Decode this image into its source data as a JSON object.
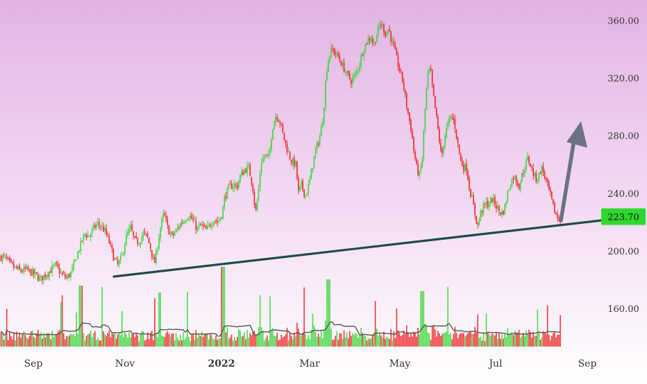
{
  "chart_data": {
    "type": "candlestick",
    "y_axis": {
      "position": "right",
      "ticks": [
        "360.00",
        "320.00",
        "280.00",
        "240.00",
        "200.00",
        "160.00"
      ],
      "tick_values": [
        360,
        320,
        280,
        240,
        200,
        160
      ],
      "range": [
        118,
        378
      ]
    },
    "x_axis": {
      "labels": [
        "Sep",
        "Nov",
        "2022",
        "Mar",
        "May",
        "Jul",
        "Sep"
      ],
      "bold_label": "2022"
    },
    "last_price": {
      "label": "223.70",
      "value": 223.7
    },
    "colors": {
      "up": "#36d636",
      "down": "#ee2222",
      "background_top": "#e2b4e2",
      "background_bottom": "#ffffff",
      "trendline": "#1e4a48",
      "arrow": "#6b7280",
      "price_badge": "#2fd82f",
      "volume_ma": "#555555"
    },
    "trendline": {
      "start": [
        "Oct-2021",
        183
      ],
      "end": [
        "Aug-2022",
        222
      ]
    },
    "arrow": {
      "direction": "up"
    },
    "price_path": [
      [
        0,
        196
      ],
      [
        8,
        195
      ],
      [
        14,
        191
      ],
      [
        22,
        188
      ],
      [
        30,
        186
      ],
      [
        38,
        187
      ],
      [
        45,
        185
      ],
      [
        52,
        183
      ],
      [
        58,
        180
      ],
      [
        64,
        183
      ],
      [
        72,
        186
      ],
      [
        80,
        190
      ],
      [
        88,
        184
      ],
      [
        96,
        181
      ],
      [
        104,
        186
      ],
      [
        110,
        196
      ],
      [
        116,
        204
      ],
      [
        122,
        212
      ],
      [
        128,
        210
      ],
      [
        134,
        215
      ],
      [
        140,
        219
      ],
      [
        146,
        217
      ],
      [
        152,
        213
      ],
      [
        158,
        205
      ],
      [
        164,
        195
      ],
      [
        170,
        190
      ],
      [
        176,
        197
      ],
      [
        182,
        210
      ],
      [
        188,
        216
      ],
      [
        194,
        207
      ],
      [
        200,
        206
      ],
      [
        206,
        212
      ],
      [
        212,
        210
      ],
      [
        218,
        200
      ],
      [
        222,
        190
      ],
      [
        226,
        200
      ],
      [
        230,
        214
      ],
      [
        236,
        226
      ],
      [
        242,
        215
      ],
      [
        248,
        210
      ],
      [
        254,
        214
      ],
      [
        260,
        219
      ],
      [
        266,
        222
      ],
      [
        272,
        225
      ],
      [
        278,
        221
      ],
      [
        284,
        215
      ],
      [
        290,
        218
      ],
      [
        296,
        214
      ],
      [
        302,
        218
      ],
      [
        308,
        222
      ],
      [
        314,
        220
      ],
      [
        320,
        226
      ],
      [
        324,
        238
      ],
      [
        330,
        244
      ],
      [
        336,
        246
      ],
      [
        342,
        245
      ],
      [
        346,
        252
      ],
      [
        352,
        256
      ],
      [
        358,
        258
      ],
      [
        364,
        245
      ],
      [
        368,
        226
      ],
      [
        372,
        240
      ],
      [
        376,
        262
      ],
      [
        382,
        266
      ],
      [
        388,
        265
      ],
      [
        392,
        285
      ],
      [
        398,
        295
      ],
      [
        404,
        289
      ],
      [
        408,
        280
      ],
      [
        414,
        270
      ],
      [
        420,
        262
      ],
      [
        426,
        260
      ],
      [
        430,
        240
      ],
      [
        434,
        246
      ],
      [
        440,
        238
      ],
      [
        446,
        248
      ],
      [
        452,
        264
      ],
      [
        458,
        275
      ],
      [
        462,
        282
      ],
      [
        466,
        296
      ],
      [
        470,
        325
      ],
      [
        474,
        335
      ],
      [
        478,
        340
      ],
      [
        482,
        338
      ],
      [
        488,
        334
      ],
      [
        494,
        328
      ],
      [
        500,
        322
      ],
      [
        506,
        318
      ],
      [
        512,
        322
      ],
      [
        518,
        330
      ],
      [
        522,
        338
      ],
      [
        528,
        345
      ],
      [
        534,
        349
      ],
      [
        538,
        343
      ],
      [
        544,
        352
      ],
      [
        548,
        358
      ],
      [
        552,
        355
      ],
      [
        556,
        350
      ],
      [
        560,
        355
      ],
      [
        564,
        346
      ],
      [
        568,
        340
      ],
      [
        574,
        328
      ],
      [
        580,
        318
      ],
      [
        586,
        300
      ],
      [
        592,
        285
      ],
      [
        596,
        270
      ],
      [
        600,
        258
      ],
      [
        604,
        252
      ],
      [
        608,
        262
      ],
      [
        612,
        296
      ],
      [
        616,
        322
      ],
      [
        620,
        326
      ],
      [
        624,
        308
      ],
      [
        628,
        295
      ],
      [
        632,
        280
      ],
      [
        636,
        264
      ],
      [
        640,
        278
      ],
      [
        644,
        286
      ],
      [
        648,
        292
      ],
      [
        652,
        293
      ],
      [
        656,
        285
      ],
      [
        660,
        272
      ],
      [
        664,
        262
      ],
      [
        668,
        258
      ],
      [
        672,
        258
      ],
      [
        676,
        244
      ],
      [
        680,
        236
      ],
      [
        684,
        226
      ],
      [
        688,
        217
      ],
      [
        692,
        226
      ],
      [
        696,
        230
      ],
      [
        700,
        233
      ],
      [
        704,
        232
      ],
      [
        708,
        236
      ],
      [
        712,
        234
      ],
      [
        716,
        230
      ],
      [
        720,
        227
      ],
      [
        724,
        226
      ],
      [
        728,
        232
      ],
      [
        732,
        242
      ],
      [
        736,
        248
      ],
      [
        740,
        252
      ],
      [
        744,
        249
      ],
      [
        748,
        245
      ],
      [
        752,
        253
      ],
      [
        756,
        258
      ],
      [
        760,
        264
      ],
      [
        764,
        260
      ],
      [
        768,
        254
      ],
      [
        772,
        250
      ],
      [
        776,
        252
      ],
      [
        780,
        258
      ],
      [
        784,
        253
      ],
      [
        788,
        246
      ],
      [
        792,
        240
      ],
      [
        796,
        232
      ],
      [
        800,
        226
      ],
      [
        804,
        222
      ],
      [
        808,
        222.5
      ]
    ]
  }
}
